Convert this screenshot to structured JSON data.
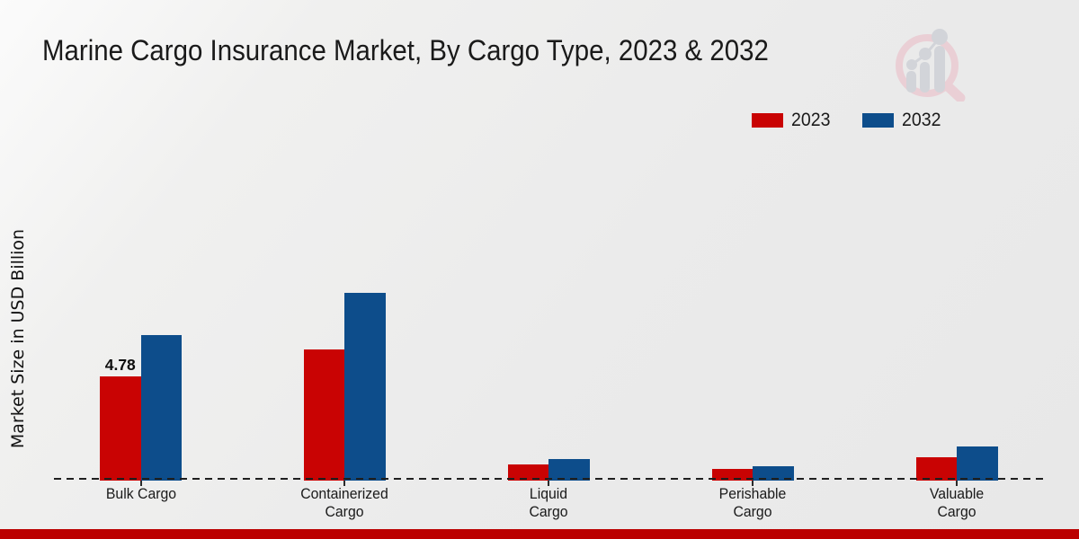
{
  "title": "Marine Cargo Insurance Market, By Cargo Type, 2023 & 2032",
  "ylabel": "Market Size in USD Billion",
  "legend": {
    "items": [
      {
        "label": "2023",
        "color": "#c90303"
      },
      {
        "label": "2032",
        "color": "#0d4d8b"
      }
    ]
  },
  "colors": {
    "series_2023": "#c90303",
    "series_2032": "#0d4d8b",
    "footer_bar": "#bb0101",
    "watermark_ring": "#eacfd5",
    "watermark_bars": "#d2d4d9",
    "axis_dash": "#1f1f1f"
  },
  "chart_data": {
    "type": "bar",
    "title": "Marine Cargo Insurance Market, By Cargo Type, 2023 & 2032",
    "xlabel": "",
    "ylabel": "Market Size in USD Billion",
    "categories": [
      "Bulk Cargo",
      "Containerized Cargo",
      "Liquid Cargo",
      "Perishable Cargo",
      "Valuable Cargo"
    ],
    "categories_lines": [
      [
        "Bulk Cargo"
      ],
      [
        "Containerized",
        "Cargo"
      ],
      [
        "Liquid",
        "Cargo"
      ],
      [
        "Perishable",
        "Cargo"
      ],
      [
        "Valuable",
        "Cargo"
      ]
    ],
    "series": [
      {
        "name": "2023",
        "color": "#c90303",
        "values": [
          4.78,
          6.05,
          0.68,
          0.46,
          1.0
        ],
        "data_labels": [
          "4.78",
          "",
          "",
          "",
          ""
        ]
      },
      {
        "name": "2032",
        "color": "#0d4d8b",
        "values": [
          6.7,
          8.7,
          0.93,
          0.6,
          1.5
        ],
        "data_labels": [
          "",
          "",
          "",
          "",
          ""
        ]
      }
    ],
    "ylim": [
      0,
      9.6
    ],
    "grid": false,
    "legend_position": "top-right",
    "baseline": "dashed"
  }
}
